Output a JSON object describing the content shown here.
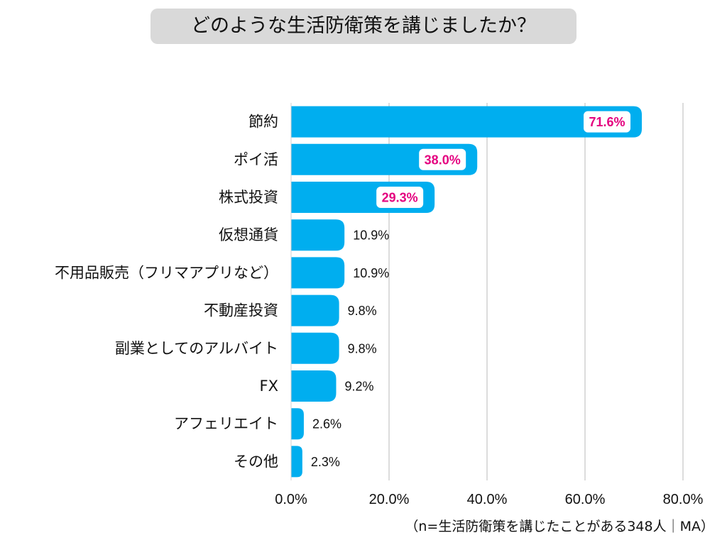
{
  "chart_data": {
    "type": "bar",
    "orientation": "horizontal",
    "title": "どのような生活防衛策を講じましたか？",
    "categories": [
      "節約",
      "ポイ活",
      "株式投資",
      "仮想通貨",
      "不用品販売（フリマアプリなど）",
      "不動産投資",
      "副業としてのアルバイト",
      "FX",
      "アフェリエイト",
      "その他"
    ],
    "values": [
      71.6,
      38.0,
      29.3,
      10.9,
      10.9,
      9.8,
      9.8,
      9.2,
      2.6,
      2.3
    ],
    "value_labels": [
      "71.6%",
      "38.0%",
      "29.3%",
      "10.9%",
      "10.9%",
      "9.8%",
      "9.8%",
      "9.2%",
      "2.6%",
      "2.3%"
    ],
    "highlight_top": 3,
    "xlim": [
      0,
      80
    ],
    "xticks": [
      0,
      20,
      40,
      60,
      80
    ],
    "xtick_labels": [
      "0.0%",
      "20.0%",
      "40.0%",
      "60.0%",
      "80.0%"
    ],
    "grid": true,
    "note": "（n=生活防衛策を講じたことがある348人｜MA）"
  },
  "colors": {
    "bar": "#00aeef",
    "highlight_text": "#e4007f",
    "grid": "#d0d0d0",
    "title_bg": "#d9d9d9"
  }
}
